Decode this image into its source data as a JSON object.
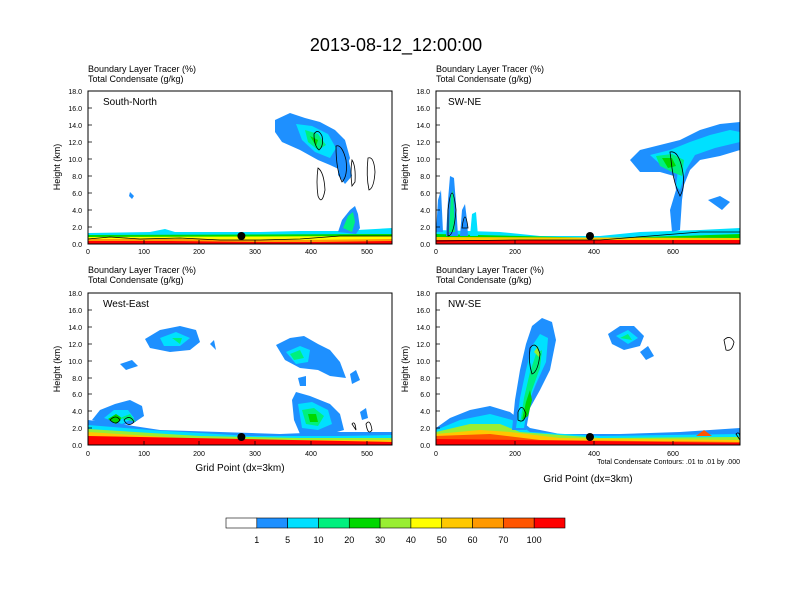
{
  "title": "2013-08-12_12:00:00",
  "chart_data": [
    {
      "type": "heatmap",
      "label": "South-North",
      "subtitle_lines": [
        "Boundary Layer Tracer   (%)",
        "Total Condensate   (g/kg)"
      ],
      "ylabel": "Height (km)",
      "xlabel": "",
      "xlim": [
        0,
        545
      ],
      "ylim": [
        0,
        18
      ],
      "xticks": [
        "0",
        "100",
        "200",
        "300",
        "400",
        "500"
      ],
      "yticks": [
        "0.0",
        "2.0",
        "4.0",
        "6.0",
        "8.0",
        "10.0",
        "12.0",
        "14.0",
        "16.0",
        "18.0"
      ],
      "marker_x": 275
    },
    {
      "type": "heatmap",
      "label": "SW-NE",
      "subtitle_lines": [
        "Boundary Layer Tracer   (%)",
        "Total Condensate   (g/kg)"
      ],
      "ylabel": "Height (km)",
      "xlabel": "",
      "xlim": [
        0,
        770
      ],
      "ylim": [
        0,
        18
      ],
      "xticks": [
        "0",
        "200",
        "400",
        "600"
      ],
      "yticks": [
        "0.0",
        "2.0",
        "4.0",
        "6.0",
        "8.0",
        "10.0",
        "12.0",
        "14.0",
        "16.0",
        "18.0"
      ],
      "marker_x": 390
    },
    {
      "type": "heatmap",
      "label": "West-East",
      "subtitle_lines": [
        "Boundary Layer Tracer   (%)",
        "Total Condensate   (g/kg)"
      ],
      "ylabel": "Height (km)",
      "xlabel": "Grid Point (dx=3km)",
      "xlim": [
        0,
        545
      ],
      "ylim": [
        0,
        18
      ],
      "xticks": [
        "0",
        "100",
        "200",
        "300",
        "400",
        "500"
      ],
      "yticks": [
        "0.0",
        "2.0",
        "4.0",
        "6.0",
        "8.0",
        "10.0",
        "12.0",
        "14.0",
        "16.0",
        "18.0"
      ],
      "marker_x": 275
    },
    {
      "type": "heatmap",
      "label": "NW-SE",
      "subtitle_lines": [
        "Boundary Layer Tracer   (%)",
        "Total Condensate   (g/kg)"
      ],
      "ylabel": "Height (km)",
      "xlabel": "Grid Point (dx=3km)",
      "xlim": [
        0,
        770
      ],
      "ylim": [
        0,
        18
      ],
      "xticks": [
        "0",
        "200",
        "400",
        "600"
      ],
      "yticks": [
        "0.0",
        "2.0",
        "4.0",
        "6.0",
        "8.0",
        "10.0",
        "12.0",
        "14.0",
        "16.0",
        "18.0"
      ],
      "marker_x": 390,
      "annotation": "Total Condensate Contours: .01 to .01 by .000"
    }
  ],
  "colorbar": {
    "colors": [
      "#ffffff",
      "#1e90ff",
      "#00e0ff",
      "#00f07e",
      "#00d800",
      "#99ee33",
      "#ffff00",
      "#ffc800",
      "#ff9900",
      "#ff5500",
      "#ff0000"
    ],
    "labels": [
      "1",
      "5",
      "10",
      "20",
      "30",
      "40",
      "50",
      "60",
      "70",
      "100"
    ]
  }
}
